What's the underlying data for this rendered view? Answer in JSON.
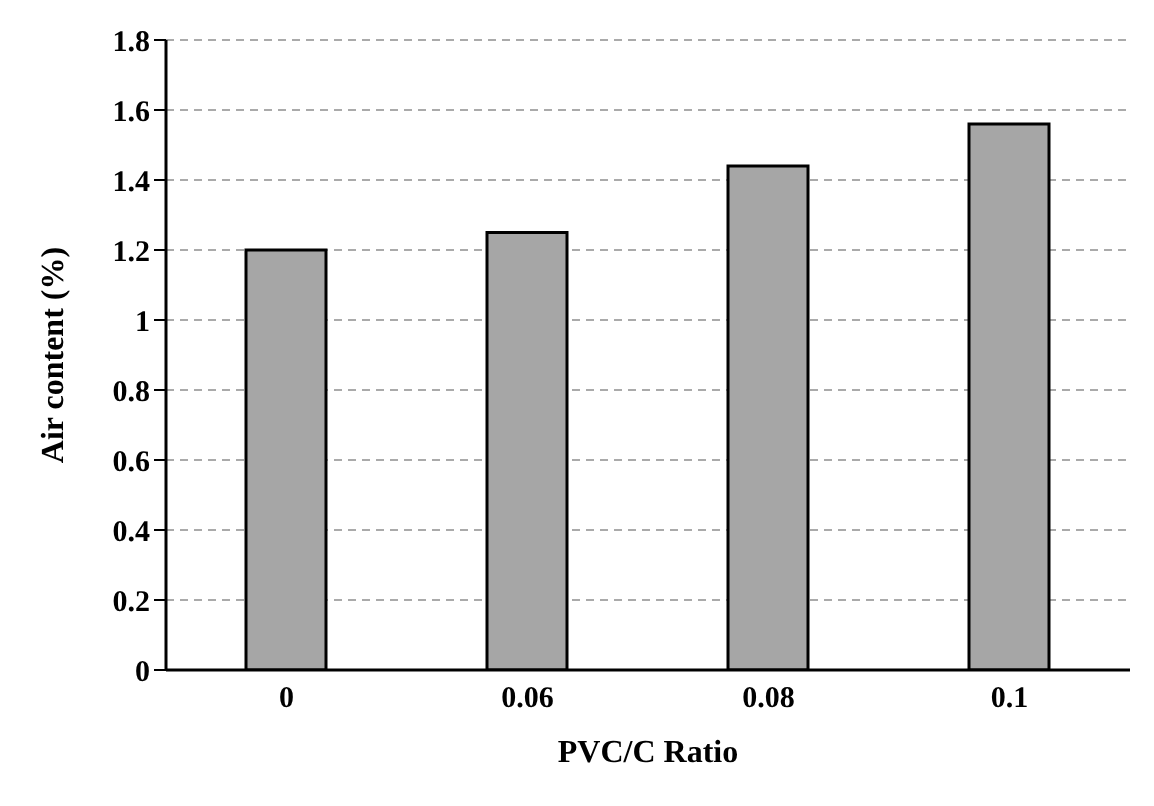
{
  "chart_data": {
    "type": "bar",
    "xlabel": "PVC/C Ratio",
    "ylabel": "Air content (%)",
    "categories": [
      "0",
      "0.06",
      "0.08",
      "0.1"
    ],
    "values": [
      1.2,
      1.25,
      1.44,
      1.56
    ],
    "color": "#a6a6a6",
    "ylim": [
      0,
      1.8
    ],
    "yticks": [
      0,
      0.2,
      0.4,
      0.6,
      0.8,
      1,
      1.2,
      1.4,
      1.6,
      1.8
    ],
    "grid": "y"
  }
}
